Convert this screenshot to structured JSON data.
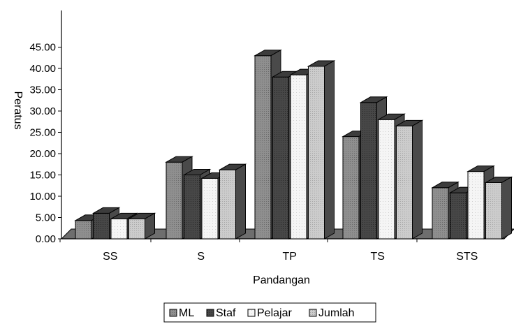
{
  "chart_data": {
    "type": "bar",
    "title": "",
    "xlabel": "Pandangan",
    "ylabel": "Peratus",
    "categories": [
      "SS",
      "S",
      "TP",
      "TS",
      "STS"
    ],
    "series": [
      {
        "name": "ML",
        "values": [
          4.3,
          18.0,
          43.0,
          24.0,
          12.0
        ],
        "color": "#8f8f8f"
      },
      {
        "name": "Staf",
        "values": [
          6.0,
          15.0,
          38.0,
          32.0,
          10.8
        ],
        "color": "#474747"
      },
      {
        "name": "Pelajar",
        "values": [
          4.7,
          14.2,
          38.5,
          28.0,
          15.8
        ],
        "color": "#f5f5f5"
      },
      {
        "name": "Jumlah",
        "values": [
          4.7,
          16.2,
          40.5,
          26.5,
          13.2
        ],
        "color": "#c9c9c9"
      }
    ],
    "yticks": [
      "0.00",
      "5.00",
      "10.00",
      "15.00",
      "20.00",
      "25.00",
      "30.00",
      "35.00",
      "40.00",
      "45.00"
    ],
    "ylim": [
      0,
      45
    ],
    "legend_position": "bottom",
    "grid": false
  }
}
